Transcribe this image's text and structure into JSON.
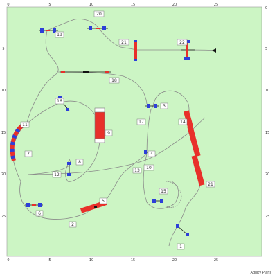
{
  "colors": {
    "field": "#ccf5c4",
    "grid_border": "#9a9a9a",
    "path": "#8a8a8a",
    "bar_red": "#e8302a",
    "bar_blue": "#2d3fd8",
    "post_black": "#111111",
    "label_fill": "#ffffff",
    "label_stroke": "#777777"
  },
  "axes": {
    "x_ticks": [
      "0",
      "5",
      "10",
      "15",
      "20",
      "25"
    ],
    "y_ticks": [
      "0",
      "5",
      "10",
      "15",
      "20",
      "25"
    ]
  },
  "obstacle_numbers": [
    "20",
    "19",
    "21",
    "22",
    "18",
    "16",
    "3",
    "17",
    "14",
    "11",
    "9",
    "7",
    "4",
    "13",
    "12",
    "8",
    "5",
    "10",
    "15",
    "21",
    "6",
    "2",
    "1"
  ],
  "footer": "Agility Plans"
}
